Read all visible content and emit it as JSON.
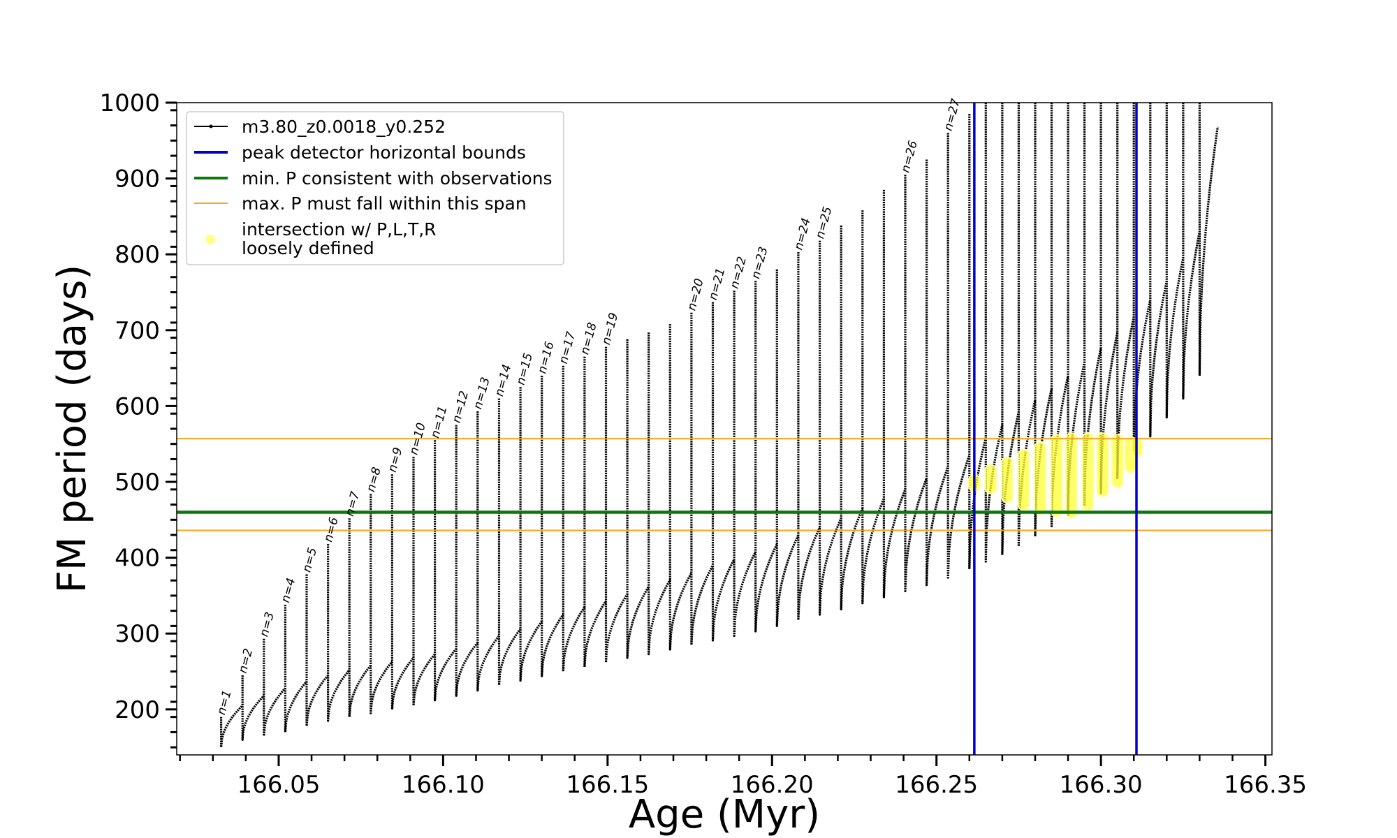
{
  "chart_data": {
    "type": "line",
    "xlabel": "Age (Myr)",
    "ylabel": "FM period (days)",
    "xlim": [
      166.019,
      166.352
    ],
    "ylim": [
      140,
      1000
    ],
    "xticks": [
      166.05,
      166.1,
      166.15,
      166.2,
      166.25,
      166.3,
      166.35
    ],
    "xtick_labels": [
      "166.05",
      "166.10",
      "166.15",
      "166.20",
      "166.25",
      "166.30",
      "166.35"
    ],
    "yticks": [
      200,
      300,
      400,
      500,
      600,
      700,
      800,
      900,
      1000
    ],
    "ytick_labels": [
      "200",
      "300",
      "400",
      "500",
      "600",
      "700",
      "800",
      "900",
      "1000"
    ],
    "grid": false,
    "legend_position": "top-left",
    "legend": [
      {
        "label": "m3.80_z0.0018_y0.252",
        "style": "line-marker",
        "color": "#000000"
      },
      {
        "label": "peak detector horizontal bounds",
        "style": "line",
        "color": "#0000cc"
      },
      {
        "label": "min. P consistent with observations",
        "style": "line",
        "color": "#0a7a0a"
      },
      {
        "label": "max. P must fall within this span",
        "style": "thin-line",
        "color": "#f5a623"
      },
      {
        "label": "intersection w/ P,L,T,R",
        "label2": "loosely defined",
        "style": "dot",
        "color": "#ffff66"
      }
    ],
    "track_color": "#000000",
    "pulse_start_ages": [
      166.0325,
      166.039,
      166.0455,
      166.052,
      166.0585,
      166.065,
      166.0715,
      166.078,
      166.0845,
      166.091,
      166.0975,
      166.104,
      166.1105,
      166.117,
      166.1235,
      166.13,
      166.1365,
      166.143,
      166.1495,
      166.156,
      166.1625,
      166.169,
      166.1755,
      166.182,
      166.1885,
      166.195,
      166.2015,
      166.208,
      166.2145,
      166.221,
      166.2275,
      166.234,
      166.2405,
      166.247,
      166.2535,
      166.26,
      166.265,
      166.27,
      166.275,
      166.28,
      166.285,
      166.29,
      166.295,
      166.3,
      166.305,
      166.31,
      166.315,
      166.32,
      166.325,
      166.33
    ],
    "track_end_age": 166.3355,
    "track_end_period": 968,
    "pulse_peak_periods": [
      190,
      245,
      293,
      338,
      378,
      418,
      452,
      484,
      510,
      533,
      555,
      575,
      593,
      610,
      625,
      640,
      653,
      665,
      678,
      688,
      697,
      708,
      723,
      737,
      752,
      765,
      780,
      803,
      818,
      838,
      858,
      885,
      905,
      925,
      960,
      985,
      1000,
      1000,
      1000,
      1000,
      1000,
      1000,
      1000,
      1000,
      1000,
      1000,
      1000,
      1000,
      1000,
      1000
    ],
    "pulse_start_periods": [
      150,
      160,
      165,
      170,
      178,
      185,
      190,
      195,
      200,
      205,
      212,
      218,
      225,
      232,
      238,
      244,
      250,
      256,
      262,
      268,
      273,
      279,
      285,
      291,
      297,
      303,
      310,
      318,
      325,
      332,
      340,
      348,
      356,
      364,
      372,
      385,
      395,
      405,
      415,
      428,
      440,
      455,
      470,
      485,
      505,
      540,
      560,
      585,
      610,
      640
    ],
    "pulse_end_periods": [
      205,
      218,
      228,
      237,
      245,
      252,
      258,
      263,
      268,
      273,
      280,
      288,
      297,
      306,
      316,
      325,
      335,
      343,
      352,
      362,
      371,
      380,
      390,
      398,
      408,
      418,
      430,
      440,
      452,
      465,
      478,
      490,
      505,
      520,
      535,
      558,
      575,
      592,
      608,
      623,
      640,
      658,
      677,
      697,
      718,
      740,
      765,
      795,
      830,
      870
    ],
    "n_labels": [
      {
        "text": "n=1",
        "age": 166.0325
      },
      {
        "text": "n=2",
        "age": 166.039
      },
      {
        "text": "n=3",
        "age": 166.0455
      },
      {
        "text": "n=4",
        "age": 166.052
      },
      {
        "text": "n=5",
        "age": 166.0585
      },
      {
        "text": "n=6",
        "age": 166.065
      },
      {
        "text": "n=7",
        "age": 166.0715
      },
      {
        "text": "n=8",
        "age": 166.078
      },
      {
        "text": "n=9",
        "age": 166.0845
      },
      {
        "text": "n=10",
        "age": 166.091
      },
      {
        "text": "n=11",
        "age": 166.0975
      },
      {
        "text": "n=12",
        "age": 166.104
      },
      {
        "text": "n=13",
        "age": 166.1105
      },
      {
        "text": "n=14",
        "age": 166.117
      },
      {
        "text": "n=15",
        "age": 166.1235
      },
      {
        "text": "n=16",
        "age": 166.13
      },
      {
        "text": "n=17",
        "age": 166.1365
      },
      {
        "text": "n=18",
        "age": 166.143
      },
      {
        "text": "n=19",
        "age": 166.1495
      },
      {
        "text": "n=20",
        "age": 166.1755
      },
      {
        "text": "n=21",
        "age": 166.182
      },
      {
        "text": "n=22",
        "age": 166.1885
      },
      {
        "text": "n=23",
        "age": 166.195
      },
      {
        "text": "n=24",
        "age": 166.208
      },
      {
        "text": "n=25",
        "age": 166.2145
      },
      {
        "text": "n=26",
        "age": 166.2405
      },
      {
        "text": "n=27",
        "age": 166.2535
      }
    ],
    "blue_vlines": [
      166.2615,
      166.3108
    ],
    "green_hline": 460,
    "orange_hlines": [
      436,
      557
    ],
    "intersections": [
      {
        "x": 166.2615,
        "y_min": 495,
        "y_max": 502
      },
      {
        "x": 166.2665,
        "y_min": 492,
        "y_max": 515
      },
      {
        "x": 166.2715,
        "y_min": 480,
        "y_max": 525
      },
      {
        "x": 166.2765,
        "y_min": 470,
        "y_max": 535
      },
      {
        "x": 166.2815,
        "y_min": 465,
        "y_max": 545
      },
      {
        "x": 166.2865,
        "y_min": 462,
        "y_max": 555
      },
      {
        "x": 166.291,
        "y_min": 460,
        "y_max": 557
      },
      {
        "x": 166.296,
        "y_min": 470,
        "y_max": 557
      },
      {
        "x": 166.3005,
        "y_min": 488,
        "y_max": 557
      },
      {
        "x": 166.305,
        "y_min": 500,
        "y_max": 555
      },
      {
        "x": 166.309,
        "y_min": 520,
        "y_max": 552
      },
      {
        "x": 166.3108,
        "y_min": 540,
        "y_max": 550
      }
    ]
  }
}
